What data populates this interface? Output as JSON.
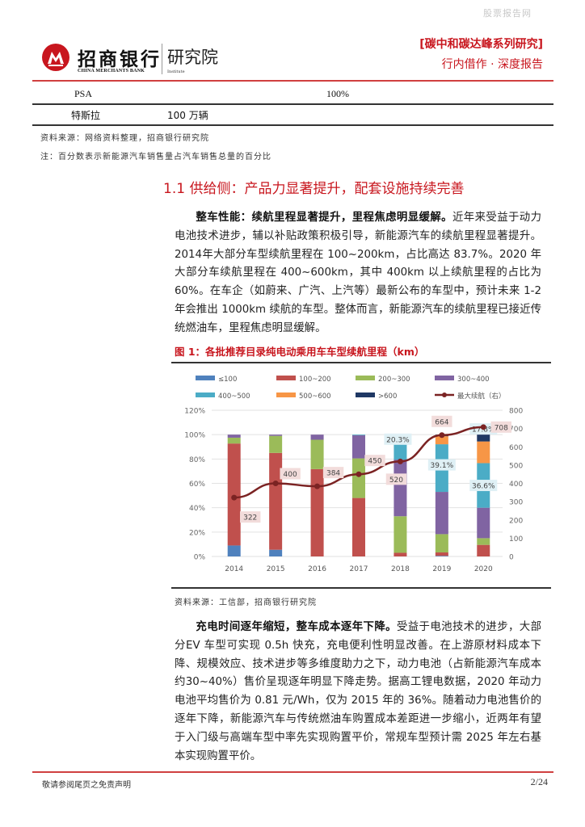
{
  "watermark": "股票报告网",
  "header": {
    "logo_cn": "招商银行",
    "logo_en": "CHINA MERCHANTS BANK",
    "institute_cn": "研究院",
    "institute_en": "Institute",
    "series_title": "[碳中和碳达峰系列研究]",
    "report_type": "行内借作 · 深度报告"
  },
  "table": {
    "rows": [
      {
        "company": "PSA",
        "col2": "",
        "col3": "100%"
      },
      {
        "company": "特斯拉",
        "col2": "100 万辆",
        "col3": ""
      }
    ],
    "source": "资料来源：网络资料整理，招商银行研究院",
    "note": "注：百分数表示新能源汽车销售量占汽车销售总量的百分比"
  },
  "section": {
    "title": "1.1 供给侧：产品力显著提升，配套设施持续完善"
  },
  "paragraph1": {
    "lead": "整车性能：续航里程显著提升，里程焦虑明显缓解。",
    "body": "近年来受益于动力电池技术进步，辅以补贴政策积极引导，新能源汽车的续航里程显著提升。2014年大部分车型续航里程在 100~200km，占比高达 83.7%。2020 年大部分车续航里程在 400~600km，其中 400km 以上续航里程的占比为 60%。在车企（如蔚来、广汽、上汽等）最新公布的车型中，预计未来 1-2 年会推出 1000km 续航的车型。整体而言，新能源汽车的续航里程已接近传统燃油车，里程焦虑明显缓解。"
  },
  "figure": {
    "title": "图 1：各批推荐目录纯电动乘用车车型续航里程（km）",
    "source": "资料来源：工信部，招商银行研究院"
  },
  "chart_data": {
    "type": "bar",
    "stacked": true,
    "title": "各批推荐目录纯电动乘用车车型续航里程（km）",
    "categories": [
      "2014",
      "2015",
      "2016",
      "2017",
      "2018",
      "2019",
      "2020"
    ],
    "left_axis": {
      "ticks": [
        "0%",
        "20%",
        "40%",
        "60%",
        "80%",
        "100%",
        "120%"
      ],
      "range": [
        0,
        120
      ]
    },
    "right_axis": {
      "ticks": [
        "0",
        "100",
        "200",
        "300",
        "400",
        "500",
        "600",
        "700",
        "800"
      ],
      "range": [
        0,
        800
      ]
    },
    "series": [
      {
        "name": "≤100",
        "color": "#4f81bd",
        "values": [
          9.0,
          5.5,
          0,
          0,
          0,
          0.5,
          0
        ]
      },
      {
        "name": "100~200",
        "color": "#c0504d",
        "values": [
          83.7,
          79.5,
          71.7,
          48.0,
          3.0,
          2.8,
          9.5
        ]
      },
      {
        "name": "200~300",
        "color": "#9bbb59",
        "values": [
          4.8,
          14.0,
          24.1,
          32.5,
          30.0,
          15.0,
          5.5
        ]
      },
      {
        "name": "300~400",
        "color": "#8064a2",
        "values": [
          2.5,
          1.0,
          4.2,
          19.0,
          46.5,
          34.7,
          25.0
        ]
      },
      {
        "name": "400~500",
        "color": "#4bacc6",
        "values": [
          0,
          0,
          0,
          0.5,
          20.3,
          39.1,
          36.6
        ]
      },
      {
        "name": "500~600",
        "color": "#f79646",
        "values": [
          0,
          0,
          0,
          0,
          0.2,
          6.6,
          17.8
        ]
      },
      {
        "name": ">600",
        "color": "#1f3864",
        "values": [
          0,
          0,
          0,
          0,
          0,
          1.3,
          5.6
        ]
      }
    ],
    "line_series": {
      "name": "最大续航（右）",
      "color": "#7b2323",
      "axis": "right",
      "values": [
        322,
        400,
        384,
        450,
        520,
        664,
        708
      ]
    },
    "data_labels": [
      {
        "category": "2018",
        "series": "400~500",
        "text": "20.3%"
      },
      {
        "category": "2019",
        "series": "400~500",
        "text": "39.1%"
      },
      {
        "category": "2020",
        "series": "500~600",
        "text": "17.8%"
      },
      {
        "category": "2020",
        "series": "400~500",
        "text": "36.6%"
      }
    ],
    "legend_position": "top",
    "grid": true
  },
  "paragraph2": {
    "lead": "充电时间逐年缩短，整车成本逐年下降。",
    "body": "受益于电池技术的进步，大部分EV 车型可实现 0.5h 快充，充电便利性明显改善。在上游原材料成本下降、规模效应、技术进步等多维度助力之下，动力电池（占新能源汽车成本约30~40%）售价呈现逐年明显下降走势。据高工锂电数据，2020 年动力电池平均售价为 0.81 元/Wh，仅为 2015 年的 36%。随着动力电池售价的逐年下降，新能源汽车与传统燃油车购置成本差距进一步缩小，近两年有望于入门级与高端车型中率先实现购置平价，常规车型预计需 2025 年左右基本实现购置平价。"
  },
  "footer": {
    "disclaimer": "敬请参阅尾页之免责声明",
    "page": "2/24"
  }
}
